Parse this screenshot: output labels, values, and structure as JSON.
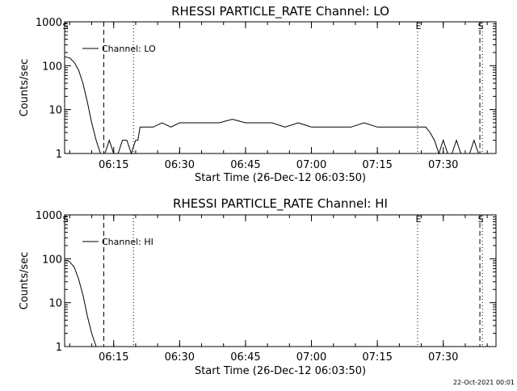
{
  "footer": "22-Oct-2021 00:01",
  "chart_data": [
    {
      "type": "line",
      "title": "RHESSI PARTICLE_RATE Channel: LO",
      "xlabel": "Start Time (26-Dec-12 06:03:50)",
      "ylabel": "Counts/sec",
      "yscale": "log",
      "ylim": [
        1,
        1000
      ],
      "y_ticks": [
        "1",
        "10",
        "100",
        "1000"
      ],
      "xlim": [
        "06:03:50",
        "07:42:00"
      ],
      "x_ticks": [
        "06:15",
        "06:30",
        "06:45",
        "07:00",
        "07:15",
        "07:30"
      ],
      "legend": "Channel: LO",
      "series": [
        {
          "name": "Channel: LO",
          "x": [
            "06:03:50",
            "06:05:00",
            "06:06:00",
            "06:07:00",
            "06:08:00",
            "06:09:00",
            "06:10:00",
            "06:11:00",
            "06:12:00",
            "06:13:00",
            "06:14:00",
            "06:15:00",
            "06:16:00",
            "06:17:00",
            "06:18:00",
            "06:19:00",
            "06:20:00",
            "06:20:30",
            "06:21:00",
            "06:22:00",
            "06:24:00",
            "06:26:00",
            "06:28:00",
            "06:30:00",
            "06:33:00",
            "06:36:00",
            "06:39:00",
            "06:42:00",
            "06:45:00",
            "06:48:00",
            "06:51:00",
            "06:54:00",
            "06:57:00",
            "07:00:00",
            "07:03:00",
            "07:06:00",
            "07:09:00",
            "07:12:00",
            "07:15:00",
            "07:18:00",
            "07:21:00",
            "07:24:00",
            "07:26:00",
            "07:27:00",
            "07:28:00",
            "07:29:00",
            "07:30:00",
            "07:31:00",
            "07:32:00",
            "07:33:00",
            "07:34:00",
            "07:35:00",
            "07:36:00",
            "07:37:00",
            "07:38:00"
          ],
          "y": [
            160,
            150,
            120,
            80,
            40,
            15,
            5,
            2,
            1,
            1,
            2,
            1,
            1,
            2,
            2,
            1,
            2,
            2,
            4,
            4,
            4,
            5,
            4,
            5,
            5,
            5,
            5,
            6,
            5,
            5,
            5,
            4,
            5,
            4,
            4,
            4,
            4,
            5,
            4,
            4,
            4,
            4,
            4,
            3,
            2,
            1,
            2,
            1,
            1,
            2,
            1,
            1,
            1,
            2,
            1
          ]
        }
      ],
      "markers": [
        {
          "label": "S",
          "x": "06:03:50",
          "style": "dashed"
        },
        {
          "label": "",
          "x": "06:12:45",
          "style": "dashed"
        },
        {
          "label": "",
          "x": "06:19:30",
          "style": "dotted"
        },
        {
          "label": "E",
          "x": "07:24:10",
          "style": "dotted"
        },
        {
          "label": "S",
          "x": "07:38:20",
          "style": "dashed"
        },
        {
          "label": "",
          "x": "07:38:55",
          "style": "dotted"
        }
      ]
    },
    {
      "type": "line",
      "title": "RHESSI PARTICLE_RATE Channel: HI",
      "xlabel": "Start Time (26-Dec-12 06:03:50)",
      "ylabel": "Counts/sec",
      "yscale": "log",
      "ylim": [
        1,
        1000
      ],
      "y_ticks": [
        "1",
        "10",
        "100",
        "1000"
      ],
      "xlim": [
        "06:03:50",
        "07:42:00"
      ],
      "x_ticks": [
        "06:15",
        "06:30",
        "06:45",
        "07:00",
        "07:15",
        "07:30"
      ],
      "legend": "Channel: HI",
      "series": [
        {
          "name": "Channel: HI",
          "x": [
            "06:03:50",
            "06:04:30",
            "06:05:00",
            "06:06:00",
            "06:07:00",
            "06:08:00",
            "06:09:00",
            "06:10:00",
            "06:11:00",
            "06:11:30"
          ],
          "y": [
            90,
            92,
            85,
            65,
            35,
            15,
            5,
            2,
            1,
            1
          ]
        }
      ],
      "markers": [
        {
          "label": "S",
          "x": "06:03:50",
          "style": "dashed"
        },
        {
          "label": "",
          "x": "06:12:45",
          "style": "dashed"
        },
        {
          "label": "",
          "x": "06:19:30",
          "style": "dotted"
        },
        {
          "label": "E",
          "x": "07:24:10",
          "style": "dotted"
        },
        {
          "label": "S",
          "x": "07:38:20",
          "style": "dashed"
        },
        {
          "label": "",
          "x": "07:38:55",
          "style": "dotted"
        }
      ]
    }
  ]
}
